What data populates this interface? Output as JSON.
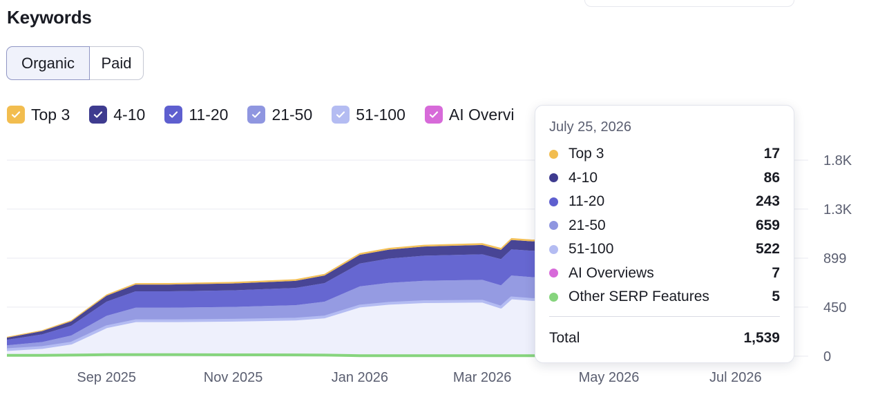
{
  "header": {
    "title": "Keywords"
  },
  "tabs": [
    {
      "label": "Organic",
      "selected": true
    },
    {
      "label": "Paid",
      "selected": false
    }
  ],
  "legend": [
    {
      "label": "Top 3",
      "color": "#f2bd4f"
    },
    {
      "label": "4-10",
      "color": "#3e3b8f"
    },
    {
      "label": "11-20",
      "color": "#5e5fcf"
    },
    {
      "label": "21-50",
      "color": "#8f96e0"
    },
    {
      "label": "51-100",
      "color": "#b4bcf2"
    },
    {
      "label": "AI Overvi",
      "color": "#d76ad9"
    }
  ],
  "tooltip": {
    "date": "July 25, 2026",
    "rows": [
      {
        "name": "Top 3",
        "value": "17",
        "color": "#f2bd4f"
      },
      {
        "name": "4-10",
        "value": "86",
        "color": "#3e3b8f"
      },
      {
        "name": "11-20",
        "value": "243",
        "color": "#5e5fcf"
      },
      {
        "name": "21-50",
        "value": "659",
        "color": "#8f96e0"
      },
      {
        "name": "51-100",
        "value": "522",
        "color": "#b4bcf2"
      },
      {
        "name": "AI Overviews",
        "value": "7",
        "color": "#d76ad9"
      },
      {
        "name": "Other SERP Features",
        "value": "5",
        "color": "#86d47d"
      }
    ],
    "total_label": "Total",
    "total_value": "1,539"
  },
  "chart_data": {
    "type": "area",
    "stacked": true,
    "y_ticks": [
      "0",
      "450",
      "899",
      "1.3K",
      "1.8K"
    ],
    "y_tick_values": [
      0,
      450,
      899,
      1349,
      1798
    ],
    "ylim": [
      0,
      1798
    ],
    "x_tick_labels": [
      "Sep 2025",
      "Nov 2025",
      "Jan 2026",
      "Mar 2026",
      "May 2026",
      "Jul 2026"
    ],
    "x_tick_dates": [
      "2025-09-01",
      "2025-11-01",
      "2026-01-01",
      "2026-03-01",
      "2026-05-01",
      "2026-07-01"
    ],
    "xlim": [
      "2025-07-15",
      "2026-08-05"
    ],
    "grid": true,
    "legend_position": "top-left",
    "dates": [
      "2025-07-15",
      "2025-08-01",
      "2025-08-15",
      "2025-09-01",
      "2025-09-15",
      "2025-10-01",
      "2025-11-01",
      "2025-12-01",
      "2025-12-15",
      "2026-01-01",
      "2026-01-15",
      "2026-02-01",
      "2026-03-01",
      "2026-03-10",
      "2026-03-15",
      "2026-03-25",
      "2026-06-15",
      "2026-07-25"
    ],
    "series": [
      {
        "name": "Top 3",
        "color": "#f2bd4f",
        "values": [
          8,
          9,
          10,
          12,
          13,
          14,
          14,
          15,
          15,
          16,
          16,
          16,
          17,
          17,
          17,
          17,
          17,
          17
        ]
      },
      {
        "name": "4-10",
        "color": "#3e3b8f",
        "values": [
          20,
          30,
          40,
          55,
          62,
          62,
          63,
          65,
          70,
          80,
          82,
          84,
          85,
          86,
          86,
          86,
          86,
          86
        ]
      },
      {
        "name": "11-20",
        "color": "#5e5fcf",
        "values": [
          50,
          70,
          90,
          130,
          150,
          150,
          152,
          158,
          170,
          210,
          222,
          230,
          235,
          240,
          240,
          242,
          243,
          243
        ]
      },
      {
        "name": "21-50",
        "color": "#8f96e0",
        "values": [
          40,
          50,
          70,
          100,
          120,
          120,
          122,
          128,
          140,
          180,
          188,
          192,
          195,
          200,
          205,
          205,
          230,
          659
        ]
      },
      {
        "name": "51-100",
        "color": "#b4bcf2",
        "values": [
          60,
          80,
          120,
          270,
          325,
          325,
          330,
          340,
          360,
          460,
          485,
          500,
          505,
          450,
          535,
          520,
          522,
          522
        ]
      },
      {
        "name": "AI Overviews",
        "color": "#d76ad9",
        "values": [
          0,
          0,
          0,
          0,
          0,
          0,
          0,
          0,
          0,
          0,
          0,
          0,
          0,
          0,
          0,
          5,
          7,
          7
        ]
      },
      {
        "name": "Other SERP Features",
        "color": "#86d47d",
        "values": [
          8,
          8,
          10,
          14,
          14,
          14,
          13,
          12,
          10,
          5,
          5,
          5,
          5,
          5,
          5,
          5,
          5,
          5
        ]
      }
    ]
  }
}
